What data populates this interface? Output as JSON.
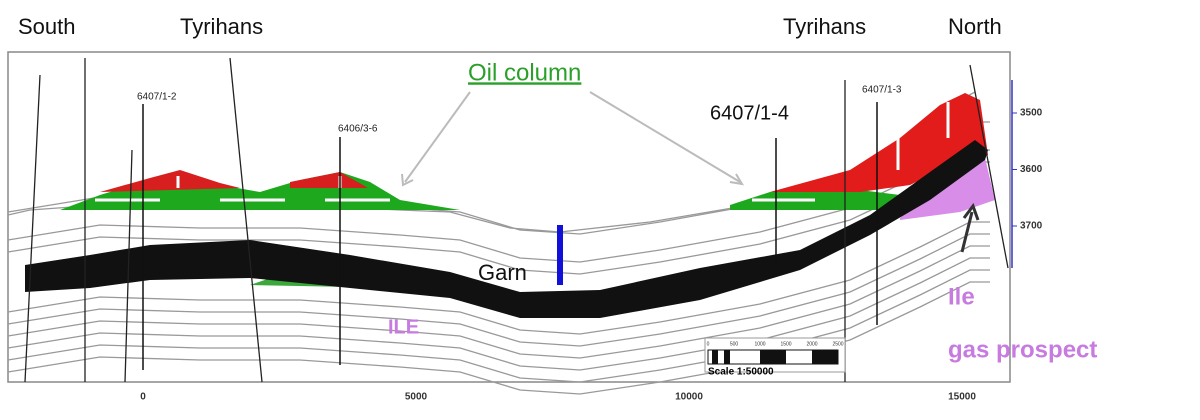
{
  "labels": {
    "south": "South",
    "tyrihans_left": "Tyrihans",
    "tyrihans_right": "Tyrihans",
    "north": "North",
    "oil_column": "Oil column",
    "garn": "Garn",
    "ile": "ILE",
    "ile_gas_1": "Ile",
    "ile_gas_2": "gas prospect"
  },
  "wells": [
    "6407/1-2",
    "6406/3-6",
    "6407/1-4",
    "6407/1-3"
  ],
  "distance_ticks": [
    0,
    5000,
    10000,
    15000
  ],
  "depth_ticks": [
    3500,
    3600,
    3700
  ],
  "scale_bar": {
    "label": "Scale 1:50000",
    "ticks": [
      0,
      500,
      1000,
      1500,
      2000,
      2500
    ]
  }
}
